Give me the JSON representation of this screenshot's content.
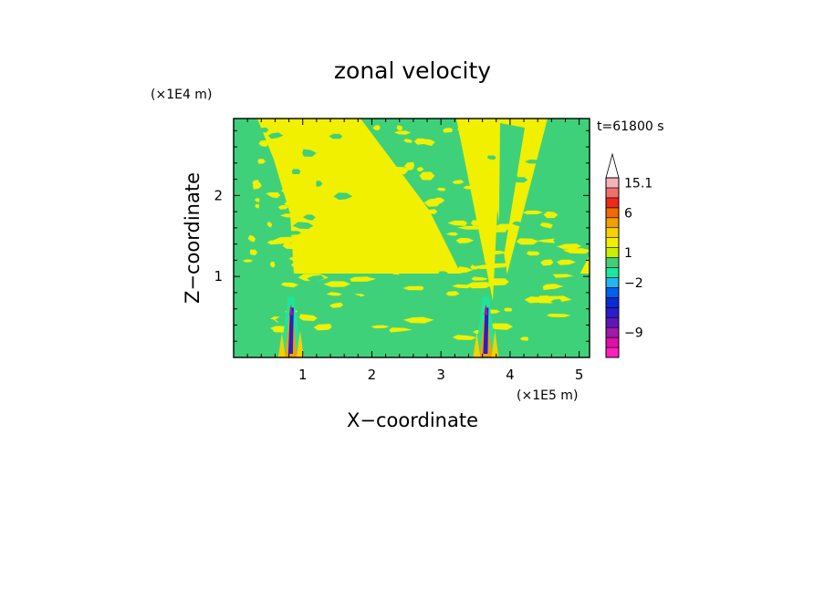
{
  "chart_data": {
    "type": "heatmap",
    "title": "zonal velocity",
    "xlabel": "X−coordinate",
    "ylabel": "Z−coordinate",
    "x_unit_label": "(×1E5 m)",
    "y_unit_label": "(×1E4 m)",
    "time_label": "t=61800 s",
    "xlim": [
      0,
      5.15
    ],
    "ylim": [
      0,
      2.95
    ],
    "x_ticks": [
      1,
      2,
      3,
      4,
      5
    ],
    "x_tick_labels": [
      "1",
      "2",
      "3",
      "4",
      "5"
    ],
    "y_ticks": [
      1,
      2
    ],
    "y_tick_labels": [
      "1",
      "2"
    ],
    "grid": false,
    "colorbar": {
      "position": "right",
      "extend": "max",
      "levels_bottom_to_top": [
        "-12",
        "-10.5",
        "-9",
        "-7.5",
        "-6",
        "-4.5",
        "-3",
        "-2",
        "-1",
        "0",
        "1",
        "2",
        "3",
        "4.5",
        "6",
        "9",
        "12",
        "15.1"
      ],
      "colors_bottom_to_top": [
        "#ff1fbf",
        "#dd10aa",
        "#a11aa8",
        "#5e17b6",
        "#2a1ecc",
        "#0a2bd6",
        "#0060f0",
        "#22b6f0",
        "#18e89e",
        "#3fd17a",
        "#c8f000",
        "#f0f000",
        "#f7d000",
        "#f0a000",
        "#f06a00",
        "#f02a1a",
        "#f07070",
        "#f5b3b8"
      ],
      "overflow_color": "#ffffff",
      "labels": [
        "15.1",
        "6",
        "1",
        "−2",
        "−9"
      ]
    },
    "field": {
      "background_levels": {
        "negative": "#3fd17a",
        "positive": "#f0f000"
      },
      "features": [
        {
          "name": "mountain-wake-1",
          "x_center": 0.83,
          "max_z": 0.75,
          "extreme_min": -9,
          "extreme_max": 4.5
        },
        {
          "name": "mountain-wake-2",
          "x_center": 3.65,
          "max_z": 0.75,
          "extreme_min": -9,
          "extreme_max": 4.5
        },
        {
          "name": "wedge-upper",
          "x_from": 2.65,
          "x_to": 4.55,
          "z_apex": 0.7
        }
      ]
    }
  }
}
